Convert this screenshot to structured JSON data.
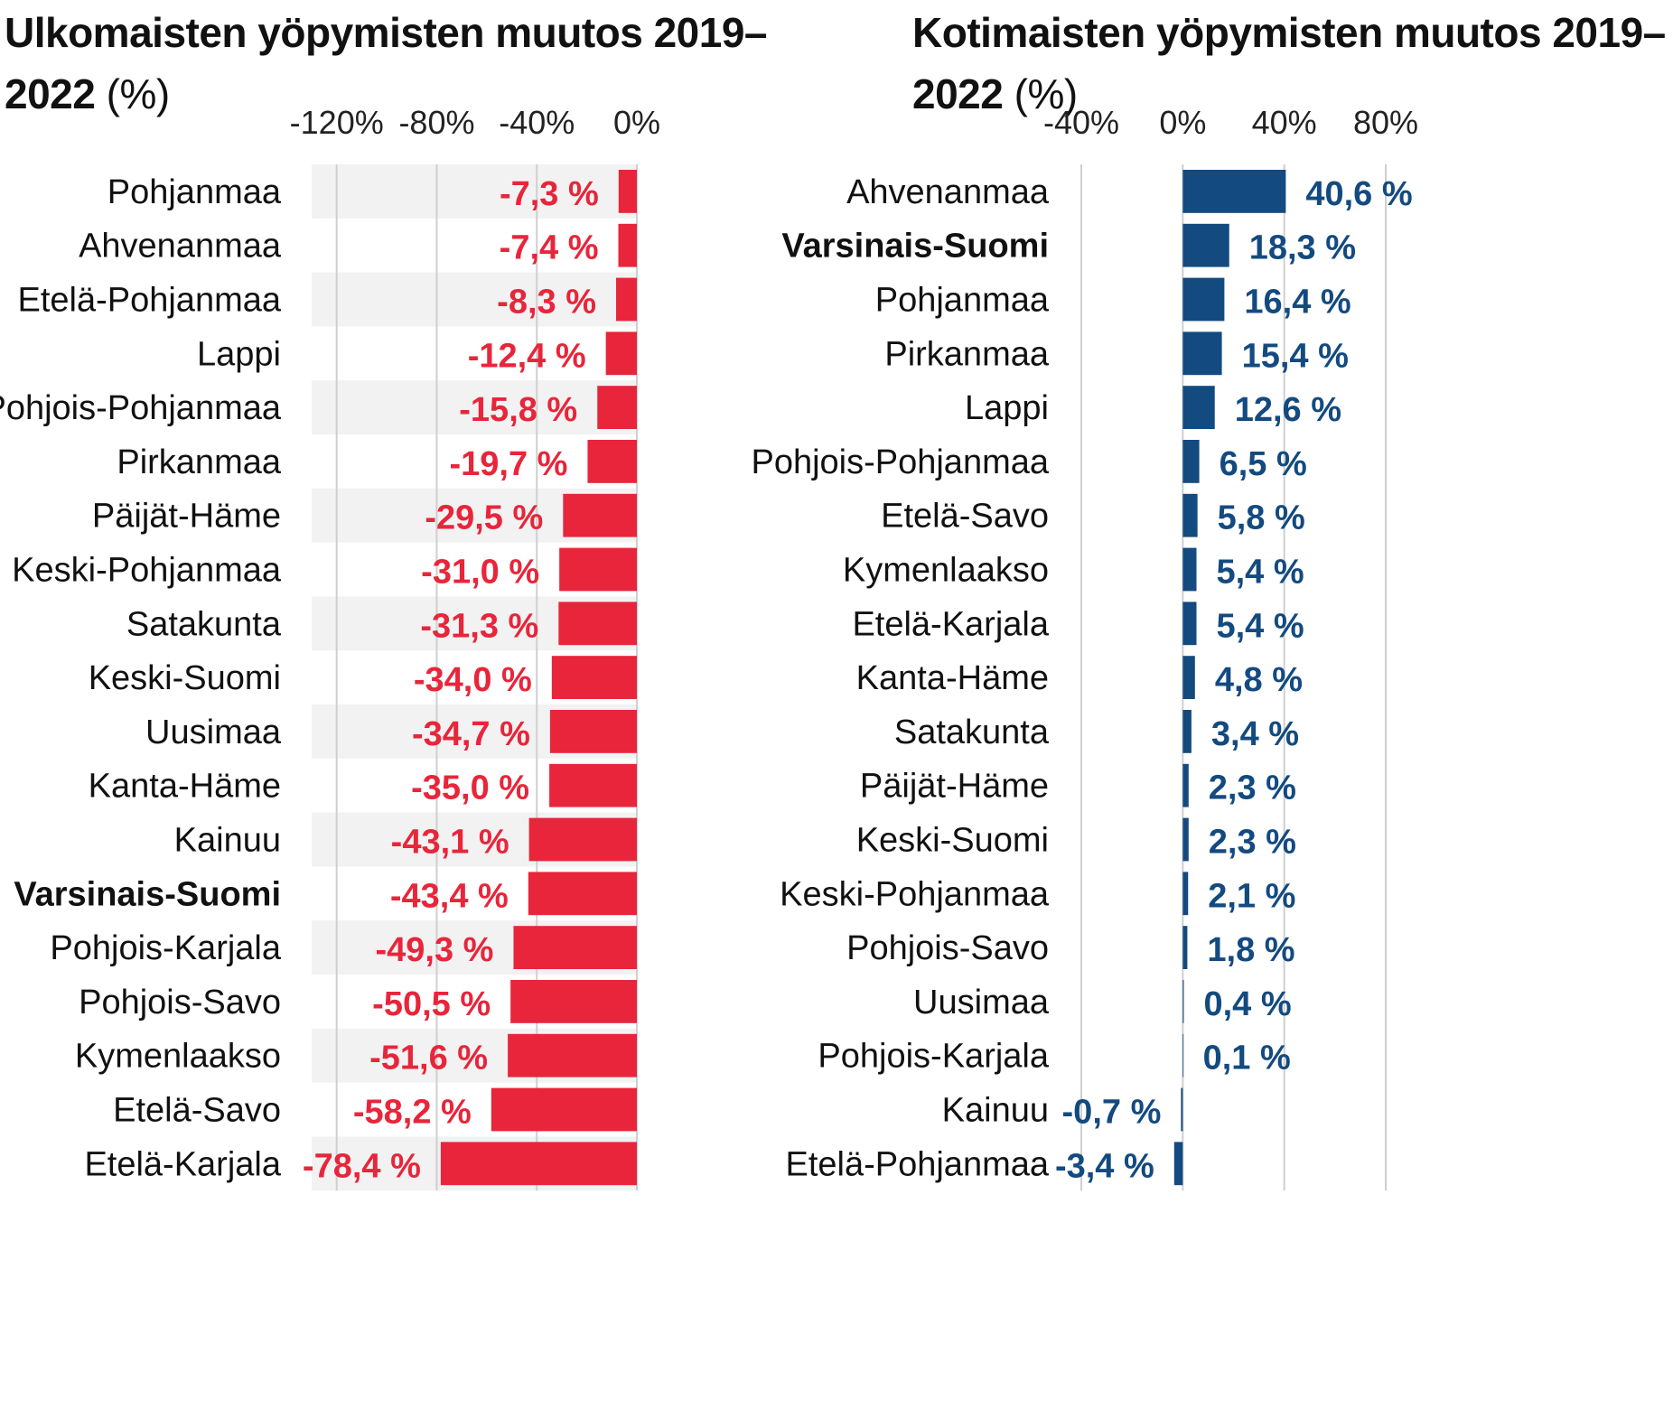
{
  "chart_data": [
    {
      "type": "bar",
      "orientation": "horizontal",
      "title": "Ulkomaisten yöpymisten muutos 2019–2022",
      "title_unit": "(%)",
      "xlim": [
        -130,
        0
      ],
      "x_ticks": [
        -120,
        -80,
        -40,
        0
      ],
      "x_tick_labels": [
        "-120%",
        "-80%",
        "-40%",
        "0%"
      ],
      "grid": true,
      "bar_color": "#e8253a",
      "label_color": "#e8253a",
      "highlight": "Varsinais-Suomi",
      "categories": [
        "Pohjanmaa",
        "Ahvenanmaa",
        "Etelä-Pohjanmaa",
        "Lappi",
        "Pohjois-Pohjanmaa",
        "Pirkanmaa",
        "Päijät-Häme",
        "Keski-Pohjanmaa",
        "Satakunta",
        "Keski-Suomi",
        "Uusimaa",
        "Kanta-Häme",
        "Kainuu",
        "Varsinais-Suomi",
        "Pohjois-Karjala",
        "Pohjois-Savo",
        "Kymenlaakso",
        "Etelä-Savo",
        "Etelä-Karjala"
      ],
      "values": [
        -7.3,
        -7.4,
        -8.3,
        -12.4,
        -15.8,
        -19.7,
        -29.5,
        -31.0,
        -31.3,
        -34.0,
        -34.7,
        -35.0,
        -43.1,
        -43.4,
        -49.3,
        -50.5,
        -51.6,
        -58.2,
        -78.4
      ],
      "value_labels": [
        "-7,3 %",
        "-7,4 %",
        "-8,3 %",
        "-12,4 %",
        "-15,8 %",
        "-19,7 %",
        "-29,5 %",
        "-31,0 %",
        "-31,3 %",
        "-34,0 %",
        "-34,7 %",
        "-35,0 %",
        "-43,1 %",
        "-43,4 %",
        "-49,3 %",
        "-50,5 %",
        "-51,6 %",
        "-58,2 %",
        "-78,4 %"
      ]
    },
    {
      "type": "bar",
      "orientation": "horizontal",
      "title": "Kotimaisten yöpymisten muutos 2019–2022",
      "title_unit": "(%)",
      "xlim": [
        -40,
        80
      ],
      "x_ticks": [
        -40,
        0,
        40,
        80
      ],
      "x_tick_labels": [
        "-40%",
        "0%",
        "40%",
        "80%"
      ],
      "grid": true,
      "bar_color": "#134a80",
      "label_color": "#134a80",
      "highlight": "Varsinais-Suomi",
      "categories": [
        "Ahvenanmaa",
        "Varsinais-Suomi",
        "Pohjanmaa",
        "Pirkanmaa",
        "Lappi",
        "Pohjois-Pohjanmaa",
        "Etelä-Savo",
        "Kymenlaakso",
        "Etelä-Karjala",
        "Kanta-Häme",
        "Satakunta",
        "Päijät-Häme",
        "Keski-Suomi",
        "Keski-Pohjanmaa",
        "Pohjois-Savo",
        "Uusimaa",
        "Pohjois-Karjala",
        "Kainuu",
        "Etelä-Pohjanmaa"
      ],
      "values": [
        40.6,
        18.3,
        16.4,
        15.4,
        12.6,
        6.5,
        5.8,
        5.4,
        5.4,
        4.8,
        3.4,
        2.3,
        2.3,
        2.1,
        1.8,
        0.4,
        0.1,
        -0.7,
        -3.4
      ],
      "value_labels": [
        "40,6 %",
        "18,3 %",
        "16,4 %",
        "15,4 %",
        "12,6 %",
        "6,5 %",
        "5,8 %",
        "5,4 %",
        "5,4 %",
        "4,8 %",
        "3,4 %",
        "2,3 %",
        "2,3 %",
        "2,1 %",
        "1,8 %",
        "0,4 %",
        "0,1 %",
        "-0,7 %",
        "-3,4 %"
      ]
    }
  ],
  "colors": {
    "band": "#f2f2f2",
    "grid": "#cfcfcf"
  }
}
